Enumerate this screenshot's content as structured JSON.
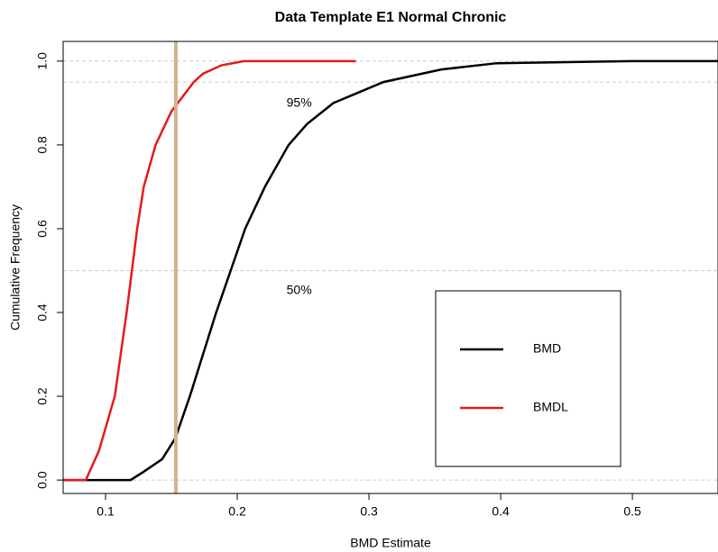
{
  "chart_data": {
    "type": "line",
    "title": "Data Template E1 Normal Chronic",
    "x_label": "BMD Estimate",
    "y_label": "Cumulative Frequency",
    "xlim": [
      0.0678,
      0.565
    ],
    "ylim": [
      -0.032,
      1.047
    ],
    "xticks": [
      0.1,
      0.2,
      0.3,
      0.4,
      0.5
    ],
    "yticks": [
      {
        "value": 0,
        "label": "0.0"
      },
      0.2,
      0.4,
      0.6,
      0.8,
      {
        "value": 1,
        "label": "1.0"
      }
    ],
    "hlines": [
      0,
      0.5,
      0.95,
      1
    ],
    "vline": 0.1534,
    "vline_color": "#d2b48c",
    "annotations": [
      {
        "text": "95%",
        "x": 0.247,
        "y": 0.899
      },
      {
        "text": "50%",
        "x": 0.247,
        "y": 0.452
      }
    ],
    "legend": "lower right",
    "series": [
      {
        "name": "BMD",
        "color": "#000000",
        "x": [
          0.0678,
          0.119,
          0.129,
          0.143,
          0.153,
          0.164,
          0.174,
          0.184,
          0.195,
          0.206,
          0.221,
          0.239,
          0.253,
          0.273,
          0.311,
          0.355,
          0.397,
          0.5,
          0.565
        ],
        "values": [
          0,
          0,
          0.02,
          0.05,
          0.1,
          0.2,
          0.3,
          0.4,
          0.5,
          0.6,
          0.7,
          0.8,
          0.85,
          0.9,
          0.95,
          0.98,
          0.995,
          1,
          1
        ]
      },
      {
        "name": "BMDL",
        "color": "#e41a1c",
        "x": [
          0.0678,
          0.085,
          0.095,
          0.107,
          0.116,
          0.12,
          0.124,
          0.129,
          0.138,
          0.15,
          0.167,
          0.174,
          0.188,
          0.205,
          0.29
        ],
        "values": [
          0,
          0,
          0.07,
          0.2,
          0.4,
          0.5,
          0.6,
          0.7,
          0.8,
          0.88,
          0.95,
          0.97,
          0.99,
          1,
          1
        ]
      }
    ]
  }
}
